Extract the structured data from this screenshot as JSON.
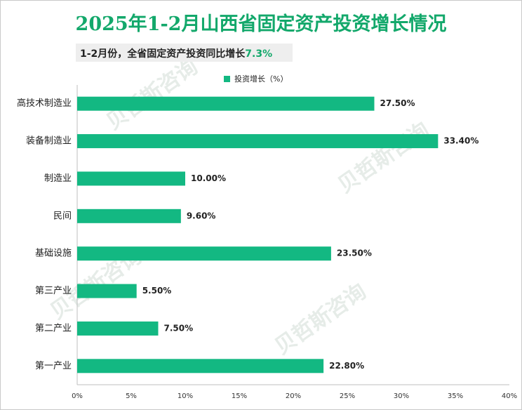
{
  "title": "2025年1-2月山西省固定资产投资增长情况",
  "subtitle": {
    "text": "1-2月份，全省固定资产投资同比增长",
    "highlight": "7.3%"
  },
  "legend": "投资增长（%）",
  "colors": {
    "bar": "#13b882",
    "title": "#13a86b"
  },
  "chart_data": {
    "type": "bar",
    "orientation": "horizontal",
    "categories": [
      "高技术制造业",
      "装备制造业",
      "制造业",
      "民间",
      "基础设施",
      "第三产业",
      "第二产业",
      "第一产业"
    ],
    "values": [
      27.5,
      33.4,
      10.0,
      9.6,
      23.5,
      5.5,
      7.5,
      22.8
    ],
    "value_labels": [
      "27.50%",
      "33.40%",
      "10.00%",
      "9.60%",
      "23.50%",
      "5.50%",
      "7.50%",
      "22.80%"
    ],
    "series": [
      {
        "name": "投资增长（%）",
        "values": [
          27.5,
          33.4,
          10.0,
          9.6,
          23.5,
          5.5,
          7.5,
          22.8
        ]
      }
    ],
    "xlim": [
      0,
      40
    ],
    "ticks": [
      0,
      5,
      10,
      15,
      20,
      25,
      30,
      35,
      40
    ],
    "tick_labels": [
      "0%",
      "5%",
      "10%",
      "15%",
      "20%",
      "25%",
      "30%",
      "35%",
      "40%"
    ],
    "grid": false,
    "legend_position": "top"
  }
}
